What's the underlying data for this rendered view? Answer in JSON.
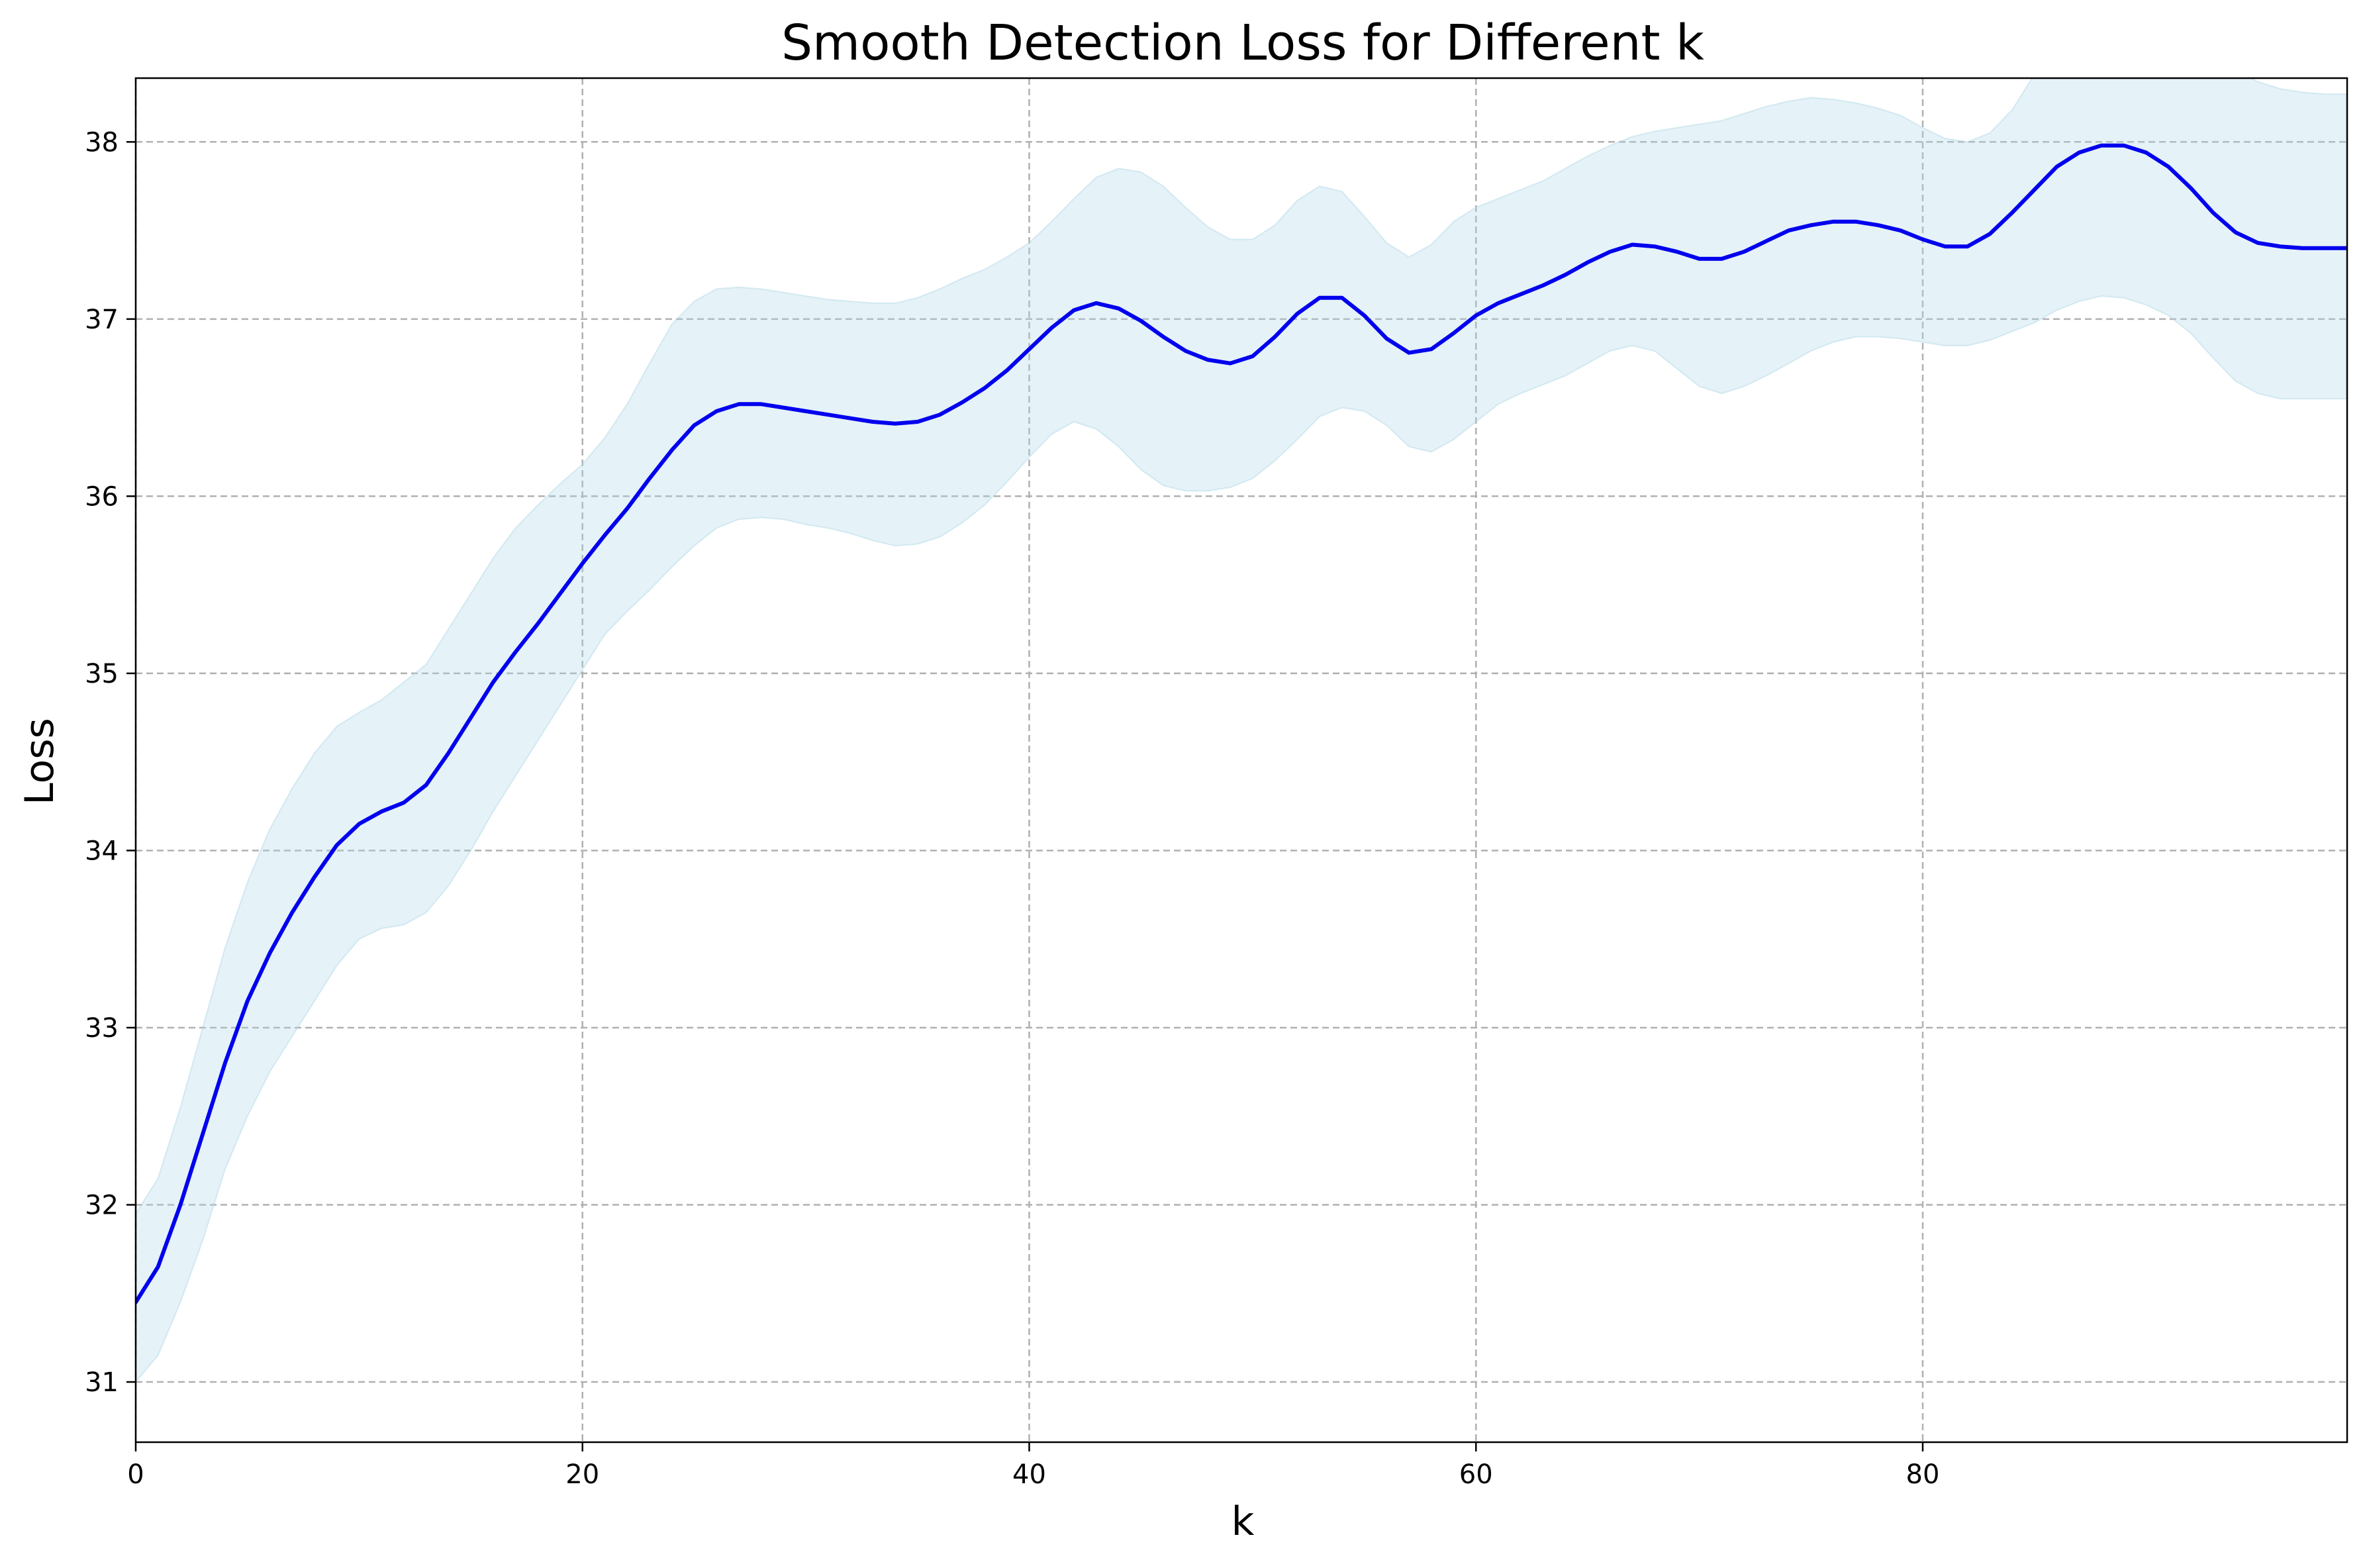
{
  "chart_data": {
    "type": "line",
    "title": "Smooth Detection Loss for Different k",
    "xlabel": "k",
    "ylabel": "Loss",
    "xlim": [
      0,
      99
    ],
    "ylim": [
      30.66,
      38.36
    ],
    "xticks": [
      0,
      20,
      40,
      60,
      80
    ],
    "yticks": [
      31,
      32,
      33,
      34,
      35,
      36,
      37,
      38
    ],
    "grid": true,
    "colors": {
      "line": "#0000ee",
      "band": "#add8e6"
    },
    "x": [
      0,
      1,
      2,
      3,
      4,
      5,
      6,
      7,
      8,
      9,
      10,
      11,
      12,
      13,
      14,
      15,
      16,
      17,
      18,
      19,
      20,
      21,
      22,
      23,
      24,
      25,
      26,
      27,
      28,
      29,
      30,
      31,
      32,
      33,
      34,
      35,
      36,
      37,
      38,
      39,
      40,
      41,
      42,
      43,
      44,
      45,
      46,
      47,
      48,
      49,
      50,
      51,
      52,
      53,
      54,
      55,
      56,
      57,
      58,
      59,
      60,
      61,
      62,
      63,
      64,
      65,
      66,
      67,
      68,
      69,
      70,
      71,
      72,
      73,
      74,
      75,
      76,
      77,
      78,
      79,
      80,
      81,
      82,
      83,
      84,
      85,
      86,
      87,
      88,
      89,
      90,
      91,
      92,
      93,
      94,
      95,
      96,
      97,
      98,
      99
    ],
    "series": [
      {
        "type": "line",
        "values": [
          31.45,
          31.65,
          32.0,
          32.4,
          32.8,
          33.15,
          33.42,
          33.65,
          33.85,
          34.03,
          34.15,
          34.22,
          34.27,
          34.37,
          34.55,
          34.75,
          34.95,
          35.12,
          35.28,
          35.45,
          35.62,
          35.78,
          35.93,
          36.1,
          36.26,
          36.4,
          36.48,
          36.52,
          36.52,
          36.5,
          36.48,
          36.46,
          36.44,
          36.42,
          36.41,
          36.42,
          36.46,
          36.53,
          36.61,
          36.71,
          36.83,
          36.95,
          37.05,
          37.09,
          37.06,
          36.99,
          36.9,
          36.82,
          36.77,
          36.75,
          36.79,
          36.9,
          37.03,
          37.12,
          37.12,
          37.02,
          36.89,
          36.81,
          36.83,
          36.92,
          37.02,
          37.09,
          37.14,
          37.19,
          37.25,
          37.32,
          37.38,
          37.42,
          37.41,
          37.38,
          37.34,
          37.34,
          37.38,
          37.44,
          37.5,
          37.53,
          37.55,
          37.55,
          37.53,
          37.5,
          37.45,
          37.41,
          37.41,
          37.48,
          37.6,
          37.73,
          37.86,
          37.94,
          37.98,
          37.98,
          37.94,
          37.86,
          37.74,
          37.6,
          37.49,
          37.43,
          37.41,
          37.4,
          37.4,
          37.4
        ]
      },
      {
        "type": "band",
        "lower": [
          31.0,
          31.15,
          31.45,
          31.8,
          32.2,
          32.5,
          32.75,
          32.95,
          33.15,
          33.35,
          33.5,
          33.56,
          33.58,
          33.65,
          33.8,
          34.0,
          34.22,
          34.42,
          34.62,
          34.82,
          35.02,
          35.22,
          35.35,
          35.47,
          35.6,
          35.72,
          35.82,
          35.87,
          35.88,
          35.87,
          35.84,
          35.82,
          35.79,
          35.75,
          35.72,
          35.73,
          35.77,
          35.85,
          35.95,
          36.08,
          36.22,
          36.35,
          36.42,
          36.38,
          36.28,
          36.15,
          36.06,
          36.03,
          36.03,
          36.05,
          36.1,
          36.2,
          36.32,
          36.45,
          36.5,
          36.48,
          36.4,
          36.28,
          36.25,
          36.32,
          36.42,
          36.52,
          36.58,
          36.63,
          36.68,
          36.75,
          36.82,
          36.85,
          36.82,
          36.72,
          36.62,
          36.58,
          36.62,
          36.68,
          36.75,
          36.82,
          36.87,
          36.9,
          36.9,
          36.89,
          36.87,
          36.85,
          36.85,
          36.88,
          36.93,
          36.98,
          37.05,
          37.1,
          37.13,
          37.12,
          37.08,
          37.02,
          36.92,
          36.78,
          36.65,
          36.58,
          36.55,
          36.55,
          36.55,
          36.55
        ],
        "upper": [
          31.95,
          32.15,
          32.55,
          33.0,
          33.45,
          33.82,
          34.12,
          34.35,
          34.55,
          34.7,
          34.78,
          34.85,
          34.95,
          35.05,
          35.25,
          35.45,
          35.65,
          35.82,
          35.95,
          36.07,
          36.18,
          36.33,
          36.52,
          36.75,
          36.97,
          37.1,
          37.17,
          37.18,
          37.17,
          37.15,
          37.13,
          37.11,
          37.1,
          37.09,
          37.09,
          37.12,
          37.17,
          37.23,
          37.28,
          37.35,
          37.43,
          37.55,
          37.68,
          37.8,
          37.85,
          37.83,
          37.75,
          37.63,
          37.52,
          37.45,
          37.45,
          37.53,
          37.67,
          37.75,
          37.72,
          37.58,
          37.43,
          37.35,
          37.42,
          37.55,
          37.63,
          37.68,
          37.73,
          37.78,
          37.85,
          37.92,
          37.98,
          38.03,
          38.06,
          38.08,
          38.1,
          38.12,
          38.16,
          38.2,
          38.23,
          38.25,
          38.24,
          38.22,
          38.19,
          38.15,
          38.08,
          38.02,
          38.0,
          38.05,
          38.18,
          38.38,
          38.5,
          38.55,
          38.56,
          38.56,
          38.55,
          38.52,
          38.48,
          38.44,
          38.4,
          38.34,
          38.3,
          38.28,
          38.27,
          38.27
        ]
      }
    ]
  }
}
